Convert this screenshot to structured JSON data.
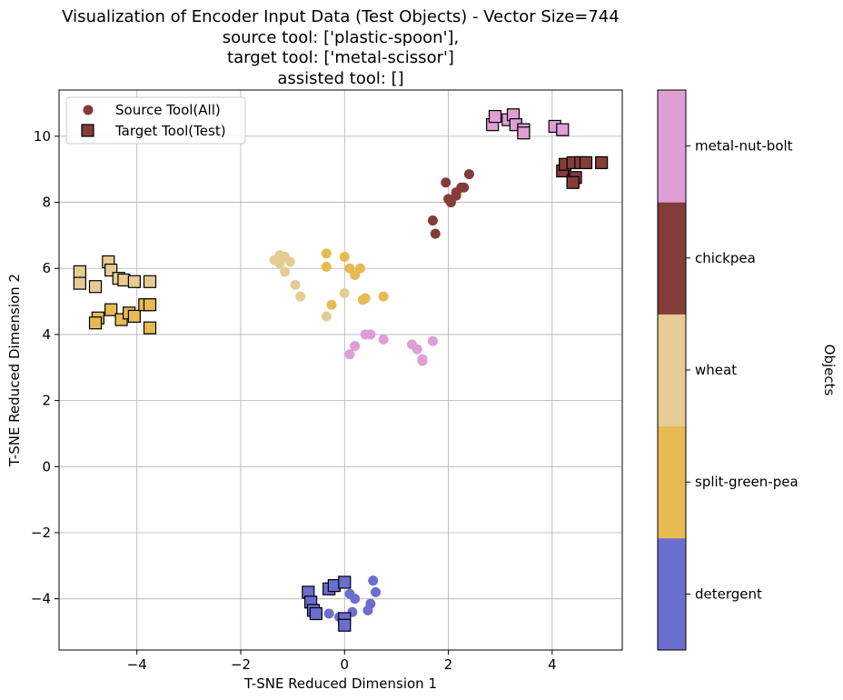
{
  "chart_data": {
    "type": "scatter",
    "title": "Visualization of Encoder Input Data (Test Objects) - Vector Size=744",
    "subtitle": "source tool: ['plastic-spoon'],",
    "title_line3": "target tool: ['metal-scissor']",
    "title_line4": "assisted tool: []",
    "xlabel": "T-SNE Reduced Dimension 1",
    "ylabel": "T-SNE Reduced Dimension 2",
    "xlim": [
      -5.5,
      5.35
    ],
    "ylim": [
      -5.55,
      11.4
    ],
    "xticks": [
      -4,
      -2,
      0,
      2,
      4
    ],
    "xtick_labels": [
      "−4",
      "−2",
      "0",
      "2",
      "4"
    ],
    "yticks": [
      -4,
      -2,
      0,
      2,
      4,
      6,
      8,
      10
    ],
    "ytick_labels": [
      "−4",
      "−2",
      "0",
      "2",
      "4",
      "6",
      "8",
      "10"
    ],
    "grid": true,
    "legend_position": "upper-left",
    "legend": [
      {
        "label": "Source Tool(All)",
        "marker": "circle",
        "color": "#843c39"
      },
      {
        "label": "Target Tool(Test)",
        "marker": "square",
        "color": "#843c39"
      }
    ],
    "colorbar": {
      "label": "Objects",
      "categories": [
        "detergent",
        "split-green-pea",
        "wheat",
        "chickpea",
        "metal-nut-bolt"
      ],
      "colors": [
        "#6b6ecf",
        "#e7ba52",
        "#e7cb94",
        "#843c39",
        "#de9ed6"
      ]
    },
    "series": [
      {
        "name": "detergent",
        "color": "#6b6ecf",
        "source": [
          [
            -0.05,
            -3.5
          ],
          [
            0.55,
            -3.45
          ],
          [
            0.1,
            -3.85
          ],
          [
            0.2,
            -4.0
          ],
          [
            0.6,
            -3.8
          ],
          [
            0.5,
            -4.15
          ],
          [
            0.45,
            -4.35
          ],
          [
            0.15,
            -4.4
          ],
          [
            -0.1,
            -4.55
          ],
          [
            -0.3,
            -4.45
          ]
        ],
        "target": [
          [
            -0.7,
            -3.8
          ],
          [
            -0.65,
            -4.1
          ],
          [
            -0.6,
            -4.35
          ],
          [
            -0.55,
            -4.45
          ],
          [
            -0.3,
            -3.7
          ],
          [
            -0.2,
            -3.6
          ],
          [
            0.0,
            -3.5
          ],
          [
            0.0,
            -4.6
          ],
          [
            0.0,
            -4.8
          ]
        ]
      },
      {
        "name": "split-green-pea",
        "color": "#e7ba52",
        "source": [
          [
            -0.35,
            6.45
          ],
          [
            -0.35,
            6.05
          ],
          [
            0.0,
            6.35
          ],
          [
            0.1,
            6.0
          ],
          [
            0.2,
            5.8
          ],
          [
            0.3,
            6.0
          ],
          [
            0.35,
            5.05
          ],
          [
            0.4,
            5.1
          ],
          [
            0.75,
            5.15
          ],
          [
            -0.25,
            4.9
          ]
        ],
        "target": [
          [
            -4.75,
            4.5
          ],
          [
            -4.8,
            4.35
          ],
          [
            -4.5,
            4.75
          ],
          [
            -4.3,
            4.45
          ],
          [
            -4.15,
            4.65
          ],
          [
            -4.05,
            4.55
          ],
          [
            -3.85,
            4.9
          ],
          [
            -3.75,
            4.9
          ],
          [
            -3.75,
            4.2
          ]
        ]
      },
      {
        "name": "wheat",
        "color": "#e7cb94",
        "source": [
          [
            -1.35,
            6.25
          ],
          [
            -1.25,
            6.4
          ],
          [
            -1.25,
            6.15
          ],
          [
            -1.15,
            6.35
          ],
          [
            -1.05,
            6.2
          ],
          [
            -1.15,
            5.9
          ],
          [
            -0.95,
            5.5
          ],
          [
            -0.85,
            5.15
          ],
          [
            -0.35,
            4.55
          ],
          [
            0.0,
            5.25
          ]
        ],
        "target": [
          [
            -5.1,
            5.9
          ],
          [
            -5.1,
            5.55
          ],
          [
            -4.8,
            5.45
          ],
          [
            -4.55,
            6.2
          ],
          [
            -4.5,
            5.95
          ],
          [
            -4.35,
            5.7
          ],
          [
            -4.25,
            5.65
          ],
          [
            -4.05,
            5.6
          ],
          [
            -3.75,
            5.6
          ]
        ]
      },
      {
        "name": "chickpea",
        "color": "#843c39",
        "source": [
          [
            1.7,
            7.45
          ],
          [
            1.75,
            7.05
          ],
          [
            1.95,
            8.6
          ],
          [
            2.05,
            8.0
          ],
          [
            2.15,
            8.2
          ],
          [
            2.15,
            8.3
          ],
          [
            2.25,
            8.45
          ],
          [
            2.3,
            8.45
          ],
          [
            2.4,
            8.85
          ],
          [
            2.0,
            8.1
          ]
        ],
        "target": [
          [
            4.2,
            8.95
          ],
          [
            4.25,
            9.15
          ],
          [
            4.4,
            8.65
          ],
          [
            4.4,
            9.2
          ],
          [
            4.45,
            8.75
          ],
          [
            4.55,
            9.2
          ],
          [
            4.65,
            9.2
          ],
          [
            4.95,
            9.2
          ],
          [
            4.4,
            8.6
          ]
        ]
      },
      {
        "name": "metal-nut-bolt",
        "color": "#de9ed6",
        "source": [
          [
            0.1,
            3.4
          ],
          [
            0.2,
            3.65
          ],
          [
            0.4,
            4.0
          ],
          [
            0.5,
            4.0
          ],
          [
            0.75,
            3.85
          ],
          [
            1.3,
            3.7
          ],
          [
            1.4,
            3.55
          ],
          [
            1.5,
            3.25
          ],
          [
            1.7,
            3.8
          ],
          [
            1.5,
            3.2
          ]
        ],
        "target": [
          [
            2.85,
            10.35
          ],
          [
            2.9,
            10.6
          ],
          [
            3.15,
            10.5
          ],
          [
            3.25,
            10.65
          ],
          [
            3.3,
            10.35
          ],
          [
            3.45,
            10.2
          ],
          [
            3.45,
            10.1
          ],
          [
            4.05,
            10.3
          ],
          [
            4.2,
            10.2
          ]
        ]
      }
    ]
  }
}
